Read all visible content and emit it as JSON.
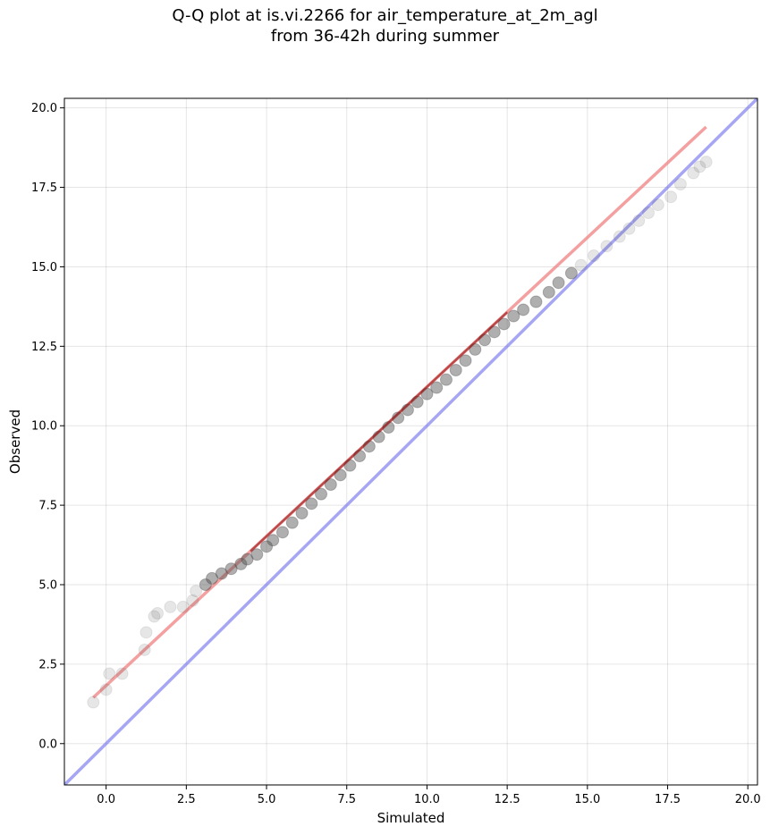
{
  "chart_data": {
    "type": "scatter",
    "title_lines": [
      "Q-Q plot at is.vi.2266 for air_temperature_at_2m_agl",
      "from 36-42h during summer"
    ],
    "xlabel": "Simulated",
    "ylabel": "Observed",
    "xlim": [
      -1.3,
      20.3
    ],
    "ylim": [
      -1.3,
      20.3
    ],
    "xticks": [
      0.0,
      2.5,
      5.0,
      7.5,
      10.0,
      12.5,
      15.0,
      17.5,
      20.0
    ],
    "xtick_labels": [
      "0.0",
      "2.5",
      "5.0",
      "7.5",
      "10.0",
      "12.5",
      "15.0",
      "17.5",
      "20.0"
    ],
    "yticks": [
      0.0,
      2.5,
      5.0,
      7.5,
      10.0,
      12.5,
      15.0,
      17.5,
      20.0
    ],
    "ytick_labels": [
      "0.0",
      "2.5",
      "5.0",
      "7.5",
      "10.0",
      "12.5",
      "15.0",
      "17.5",
      "20.0"
    ],
    "grid": true,
    "legend": "none",
    "colors": {
      "points": "#4d4d4d",
      "fit_line": "#f08080",
      "identity_line": "#8080f0",
      "dense_fit": "#8b0000"
    },
    "identity_line": {
      "x": [
        -1.3,
        20.3
      ],
      "y": [
        -1.3,
        20.3
      ]
    },
    "fit_line": {
      "x": [
        -0.4,
        18.7
      ],
      "y": [
        1.45,
        19.4
      ]
    },
    "points": {
      "x": [
        -0.4,
        0.0,
        0.1,
        0.5,
        1.2,
        1.25,
        1.5,
        1.6,
        2.0,
        2.4,
        2.7,
        2.8,
        3.1,
        3.3,
        3.6,
        3.9,
        4.2,
        4.4,
        4.7,
        5.0,
        5.2,
        5.5,
        5.8,
        6.1,
        6.4,
        6.7,
        7.0,
        7.3,
        7.6,
        7.9,
        8.2,
        8.5,
        8.8,
        9.1,
        9.4,
        9.7,
        10.0,
        10.3,
        10.6,
        10.9,
        11.2,
        11.5,
        11.8,
        12.1,
        12.4,
        12.7,
        13.0,
        13.4,
        13.8,
        14.1,
        14.5,
        14.8,
        15.2,
        15.6,
        16.0,
        16.3,
        16.6,
        16.9,
        17.2,
        17.6,
        17.9,
        18.3,
        18.5,
        18.7
      ],
      "y": [
        1.3,
        1.7,
        2.2,
        2.2,
        2.95,
        3.5,
        4.0,
        4.1,
        4.3,
        4.3,
        4.5,
        4.8,
        5.0,
        5.2,
        5.35,
        5.5,
        5.65,
        5.8,
        5.95,
        6.2,
        6.4,
        6.65,
        6.95,
        7.25,
        7.55,
        7.85,
        8.15,
        8.45,
        8.75,
        9.05,
        9.35,
        9.65,
        9.95,
        10.25,
        10.5,
        10.75,
        11.0,
        11.2,
        11.45,
        11.75,
        12.05,
        12.4,
        12.7,
        12.95,
        13.2,
        13.45,
        13.65,
        13.9,
        14.2,
        14.5,
        14.8,
        15.05,
        15.35,
        15.65,
        15.95,
        16.2,
        16.45,
        16.7,
        16.95,
        17.2,
        17.6,
        17.95,
        18.15,
        18.3
      ]
    }
  }
}
